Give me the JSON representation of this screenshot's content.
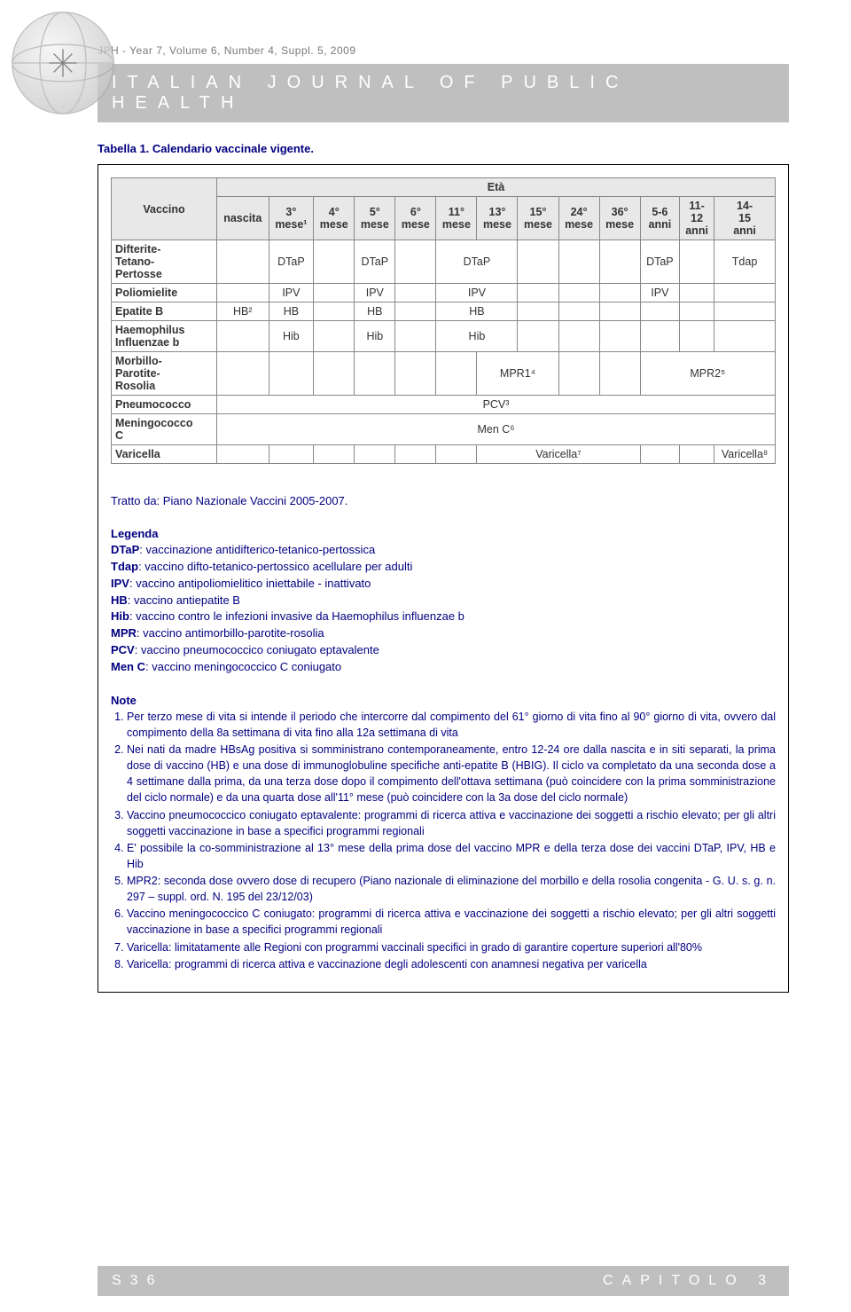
{
  "colors": {
    "accent": "#000080",
    "band_bg": "#bfbfbf",
    "band_fg": "#ffffff",
    "table_hdr_bg": "#e8e8e8",
    "border": "#888888"
  },
  "header": {
    "issue_line": "JPH - Year 7, Volume 6, Number 4, Suppl. 5, 2009",
    "journal_title": "ITALIAN  JOURNAL  OF  PUBLIC  HEALTH"
  },
  "caption": "Tabella 1. Calendario vaccinale vigente.",
  "table": {
    "type": "table",
    "super_header": "Età",
    "row_header_label": "Vaccino",
    "columns": [
      "nascita",
      "3°\nmese¹",
      "4°\nmese",
      "5°\nmese",
      "6°\nmese",
      "11°\nmese",
      "13°\nmese",
      "15°\nmese",
      "24°\nmese",
      "36°\nmese",
      "5-6\nanni",
      "11-\n12\nanni",
      "14-\n15\nanni"
    ],
    "rows": [
      {
        "label": "Difterite-\nTetano-\nPertosse",
        "cells": [
          {
            "text": "",
            "span": 1
          },
          {
            "text": "DTaP",
            "span": 1
          },
          {
            "text": "",
            "span": 1
          },
          {
            "text": "DTaP",
            "span": 1
          },
          {
            "text": "",
            "span": 1
          },
          {
            "text": "DTaP",
            "span": 2
          },
          {
            "text": "",
            "span": 1
          },
          {
            "text": "",
            "span": 1
          },
          {
            "text": "",
            "span": 1
          },
          {
            "text": "DTaP",
            "span": 1
          },
          {
            "text": "",
            "span": 1
          },
          {
            "text": "Tdap",
            "span": 1
          }
        ]
      },
      {
        "label": "Poliomielite",
        "cells": [
          {
            "text": "",
            "span": 1
          },
          {
            "text": "IPV",
            "span": 1
          },
          {
            "text": "",
            "span": 1
          },
          {
            "text": "IPV",
            "span": 1
          },
          {
            "text": "",
            "span": 1
          },
          {
            "text": "IPV",
            "span": 2
          },
          {
            "text": "",
            "span": 1
          },
          {
            "text": "",
            "span": 1
          },
          {
            "text": "",
            "span": 1
          },
          {
            "text": "IPV",
            "span": 1
          },
          {
            "text": "",
            "span": 1
          },
          {
            "text": "",
            "span": 1
          }
        ]
      },
      {
        "label": "Epatite B",
        "cells": [
          {
            "text": "HB²",
            "span": 1
          },
          {
            "text": "HB",
            "span": 1
          },
          {
            "text": "",
            "span": 1
          },
          {
            "text": "HB",
            "span": 1
          },
          {
            "text": "",
            "span": 1
          },
          {
            "text": "HB",
            "span": 2
          },
          {
            "text": "",
            "span": 1
          },
          {
            "text": "",
            "span": 1
          },
          {
            "text": "",
            "span": 1
          },
          {
            "text": "",
            "span": 1
          },
          {
            "text": "",
            "span": 1
          },
          {
            "text": "",
            "span": 1
          }
        ]
      },
      {
        "label": "Haemophilus\nInfluenzae b",
        "cells": [
          {
            "text": "",
            "span": 1
          },
          {
            "text": "Hib",
            "span": 1
          },
          {
            "text": "",
            "span": 1
          },
          {
            "text": "Hib",
            "span": 1
          },
          {
            "text": "",
            "span": 1
          },
          {
            "text": "Hib",
            "span": 2
          },
          {
            "text": "",
            "span": 1
          },
          {
            "text": "",
            "span": 1
          },
          {
            "text": "",
            "span": 1
          },
          {
            "text": "",
            "span": 1
          },
          {
            "text": "",
            "span": 1
          },
          {
            "text": "",
            "span": 1
          }
        ]
      },
      {
        "label": "Morbillo-\nParotite-\nRosolia",
        "cells": [
          {
            "text": "",
            "span": 1
          },
          {
            "text": "",
            "span": 1
          },
          {
            "text": "",
            "span": 1
          },
          {
            "text": "",
            "span": 1
          },
          {
            "text": "",
            "span": 1
          },
          {
            "text": "",
            "span": 1
          },
          {
            "text": "MPR1⁴",
            "span": 2
          },
          {
            "text": "",
            "span": 1
          },
          {
            "text": "",
            "span": 1
          },
          {
            "text": "MPR2⁵",
            "span": 3
          }
        ]
      },
      {
        "label": "Pneumococco",
        "cells": [
          {
            "text": "PCV³",
            "span": 13
          }
        ]
      },
      {
        "label": "Meningococco\nC",
        "cells": [
          {
            "text": "Men C⁶",
            "span": 13
          }
        ]
      },
      {
        "label": "Varicella",
        "cells": [
          {
            "text": "",
            "span": 1
          },
          {
            "text": "",
            "span": 1
          },
          {
            "text": "",
            "span": 1
          },
          {
            "text": "",
            "span": 1
          },
          {
            "text": "",
            "span": 1
          },
          {
            "text": "",
            "span": 1
          },
          {
            "text": "Varicella⁷",
            "span": 4
          },
          {
            "text": "",
            "span": 1
          },
          {
            "text": "",
            "span": 1
          },
          {
            "text": "Varicella⁸",
            "span": 1
          }
        ]
      }
    ]
  },
  "source": "Tratto da: Piano Nazionale Vaccini 2005-2007.",
  "legenda": {
    "heading": "Legenda",
    "items": [
      {
        "abbr": "DTaP",
        "def": ": vaccinazione antidifterico-tetanico-pertossica"
      },
      {
        "abbr": "Tdap",
        "def": ": vaccino difto-tetanico-pertossico acellulare per adulti"
      },
      {
        "abbr": "IPV",
        "def": ": vaccino antipoliomielitico iniettabile - inattivato"
      },
      {
        "abbr": "HB",
        "def": ": vaccino antiepatite B"
      },
      {
        "abbr": "Hib",
        "def": ": vaccino contro le infezioni invasive da Haemophilus influenzae b"
      },
      {
        "abbr": "MPR",
        "def": ": vaccino antimorbillo-parotite-rosolia"
      },
      {
        "abbr": "PCV",
        "def": ": vaccino pneumococcico coniugato eptavalente"
      },
      {
        "abbr": "Men C",
        "def": ": vaccino meningococcico C coniugato"
      }
    ]
  },
  "notes": {
    "heading": "Note",
    "items": [
      "Per terzo mese di vita si intende il periodo che intercorre dal compimento del 61° giorno di vita fino al 90° giorno di vita, ovvero dal compimento della 8a settimana di vita fino alla 12a settimana di vita",
      "Nei nati da madre HBsAg positiva si somministrano contemporaneamente, entro 12-24 ore dalla nascita e in siti separati, la prima dose di vaccino (HB) e una dose di immunoglobuline specifiche anti-epatite B (HBIG). Il ciclo va completato da una seconda dose a 4 settimane dalla prima, da una terza dose dopo il compimento dell'ottava settimana (può coincidere con la prima somministrazione del ciclo normale) e da una quarta dose all'11° mese (può coincidere con la 3a dose del ciclo normale)",
      "Vaccino pneumococcico coniugato eptavalente: programmi di ricerca attiva e vaccinazione dei soggetti a rischio elevato; per gli altri soggetti vaccinazione in base a specifici programmi regionali",
      "E' possibile la co-somministrazione al 13° mese della prima dose del vaccino MPR e della terza dose dei vaccini DTaP, IPV, HB e Hib",
      "MPR2: seconda dose ovvero dose di recupero (Piano nazionale di eliminazione del morbillo e della rosolia congenita - G. U. s. g. n. 297 – suppl. ord. N. 195 del 23/12/03)",
      "Vaccino meningococcico C coniugato: programmi di ricerca attiva e vaccinazione dei soggetti a rischio elevato; per gli altri soggetti vaccinazione in base a specifici programmi regionali",
      "Varicella: limitatamente alle Regioni con programmi vaccinali specifici in grado di garantire coperture superiori all'80%",
      "Varicella: programmi di ricerca attiva e vaccinazione degli adolescenti con anamnesi negativa per varicella"
    ]
  },
  "footer": {
    "page": "S36",
    "chapter": "CAPITOLO 3"
  }
}
